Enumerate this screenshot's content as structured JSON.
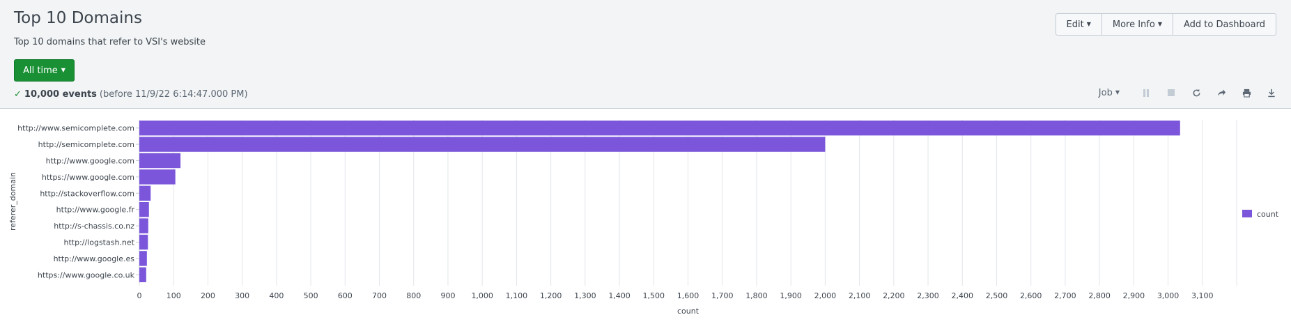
{
  "panel": {
    "title": "Top 10 Domains",
    "subtitle": "Top 10 domains that refer to VSI's website"
  },
  "time_picker": {
    "label": "All time"
  },
  "actions": {
    "edit_label": "Edit",
    "more_info_label": "More Info",
    "add_dashboard_label": "Add to Dashboard"
  },
  "status": {
    "event_count": "10,000 events",
    "timestamp": "(before 11/9/22 6:14:47.000 PM)"
  },
  "job_toolbar": {
    "job_label": "Job",
    "icons": [
      "pause-icon",
      "stop-icon",
      "refresh-icon",
      "share-icon",
      "print-icon",
      "export-icon"
    ]
  },
  "colors": {
    "accent_green": "#1a9035",
    "bar": "#7b56db",
    "header_bg": "#f2f4f5"
  },
  "chart_data": {
    "type": "bar",
    "orientation": "horizontal",
    "categories": [
      "http://www.semicomplete.com",
      "http://semicomplete.com",
      "http://www.google.com",
      "https://www.google.com",
      "http://stackoverflow.com",
      "http://www.google.fr",
      "http://s-chassis.co.nz",
      "http://logstash.net",
      "http://www.google.es",
      "https://www.google.co.uk"
    ],
    "series": [
      {
        "name": "count",
        "values": [
          3035,
          2000,
          120,
          105,
          33,
          28,
          26,
          25,
          22,
          20
        ]
      }
    ],
    "xlabel": "count",
    "ylabel": "referer_domain",
    "xlim": [
      0,
      3200
    ],
    "xticks": [
      "0",
      "100",
      "200",
      "300",
      "400",
      "500",
      "600",
      "700",
      "800",
      "900",
      "1,000",
      "1,100",
      "1,200",
      "1,300",
      "1,400",
      "1,500",
      "1,600",
      "1,700",
      "1,800",
      "1,900",
      "2,000",
      "2,100",
      "2,200",
      "2,300",
      "2,400",
      "2,500",
      "2,600",
      "2,700",
      "2,800",
      "2,900",
      "3,000",
      "3,100"
    ],
    "grid": true,
    "legend_position": "right"
  }
}
